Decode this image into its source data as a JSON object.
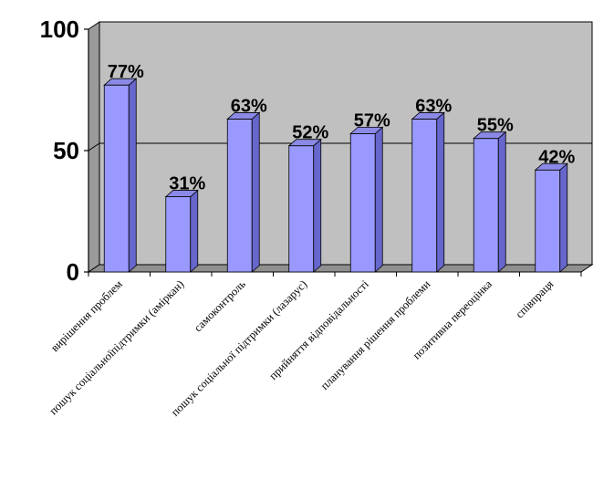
{
  "chart_data": {
    "type": "bar",
    "categories": [
      "вирішення проблем",
      "пошук соціальноїпідтримки (аміркан)",
      "самоконтроль",
      "пошук соціальної підтримки (лазарус)",
      "прийняття відповідальності",
      "планування рішення проблеми",
      "позитивна переоцінка",
      "співпраця"
    ],
    "values": [
      77,
      31,
      63,
      52,
      57,
      63,
      55,
      42
    ],
    "data_labels": [
      "77%",
      "31%",
      "63%",
      "52%",
      "57%",
      "63%",
      "55%",
      "42%"
    ],
    "y_ticks": [
      "0",
      "50",
      "100"
    ],
    "ylim": [
      0,
      100
    ],
    "grid": true,
    "legend": "none",
    "three_d": true,
    "colors": {
      "bar_front": "#9999ff",
      "bar_side": "#6666cc",
      "bar_top": "#8a8ae6",
      "plot_back": "#c0c0c0",
      "plot_side_wall": "#9a9a9a",
      "plot_floor": "#909090",
      "gridline": "#000000"
    }
  }
}
